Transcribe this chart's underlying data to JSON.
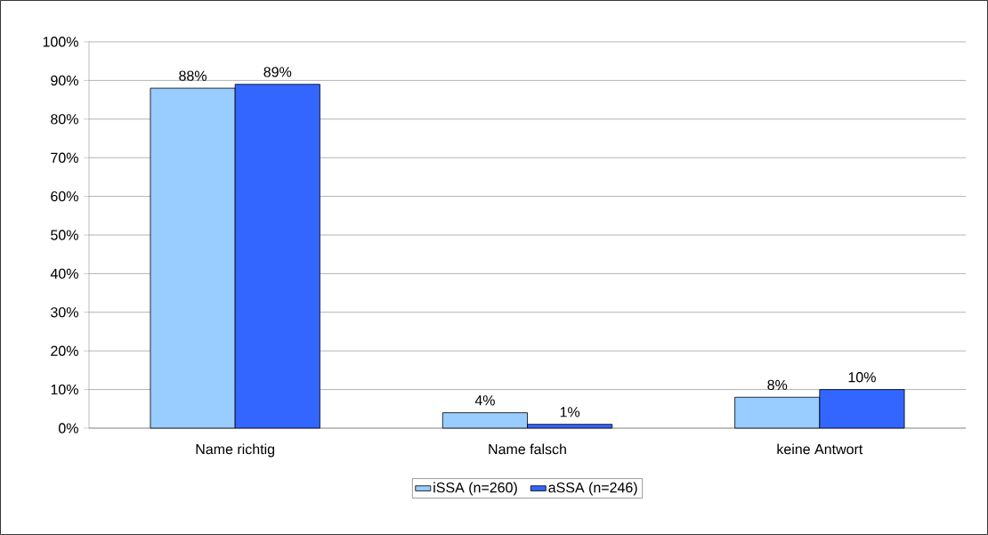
{
  "chart_data": {
    "type": "bar",
    "categories": [
      "Name richtig",
      "Name falsch",
      "keine Antwort"
    ],
    "series": [
      {
        "name": "iSSA (n=260)",
        "color": "#99ccff",
        "values": [
          88,
          4,
          8
        ],
        "value_labels": [
          "88%",
          "4%",
          "8%"
        ]
      },
      {
        "name": "aSSA (n=246)",
        "color": "#3366ff",
        "values": [
          89,
          1,
          10
        ],
        "value_labels": [
          "89%",
          "1%",
          "10%"
        ]
      }
    ],
    "ylim": [
      0,
      100
    ],
    "yticks": [
      {
        "value": 0,
        "label": "0%"
      },
      {
        "value": 10,
        "label": "10%"
      },
      {
        "value": 20,
        "label": "20%"
      },
      {
        "value": 30,
        "label": "30%"
      },
      {
        "value": 40,
        "label": "40%"
      },
      {
        "value": 50,
        "label": "50%"
      },
      {
        "value": 60,
        "label": "60%"
      },
      {
        "value": 70,
        "label": "70%"
      },
      {
        "value": 80,
        "label": "80%"
      },
      {
        "value": 90,
        "label": "90%"
      },
      {
        "value": 100,
        "label": "100%"
      }
    ],
    "grid": "y",
    "legend": "bottom"
  }
}
